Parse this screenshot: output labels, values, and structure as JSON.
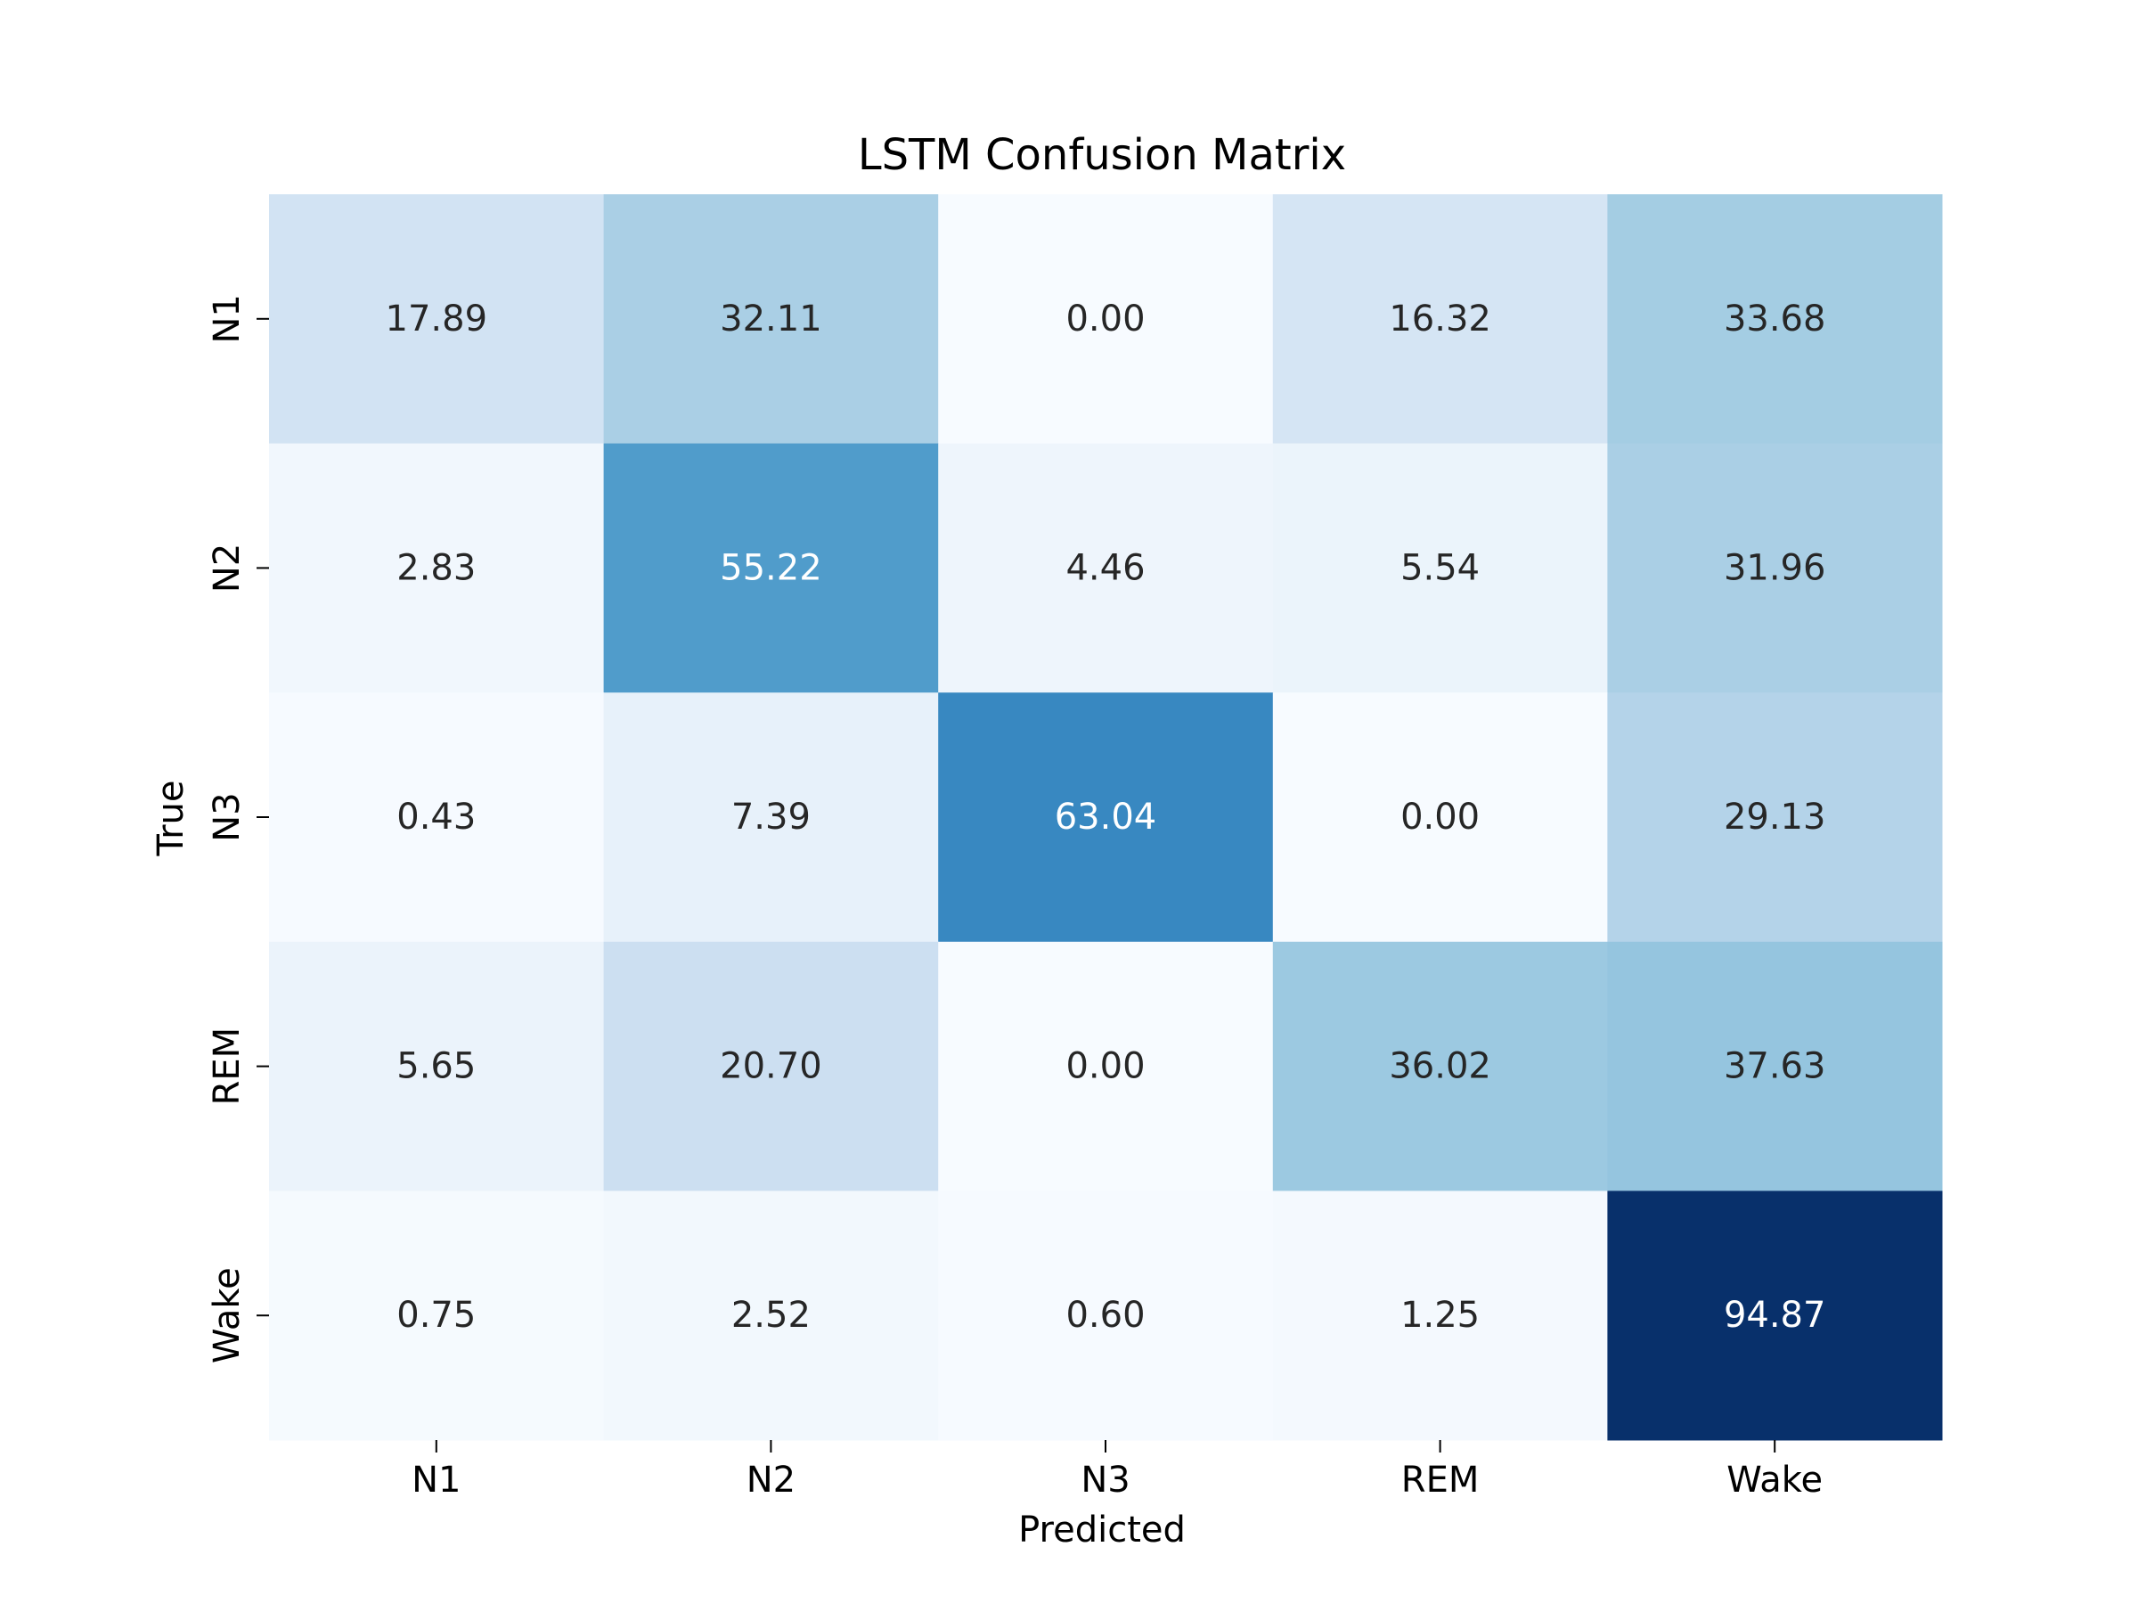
{
  "chart_data": {
    "type": "heatmap",
    "title": "LSTM Confusion Matrix",
    "xlabel": "Predicted",
    "ylabel": "True",
    "x_categories": [
      "N1",
      "N2",
      "N3",
      "REM",
      "Wake"
    ],
    "y_categories": [
      "N1",
      "N2",
      "N3",
      "REM",
      "Wake"
    ],
    "values": [
      [
        17.89,
        32.11,
        0.0,
        16.32,
        33.68
      ],
      [
        2.83,
        55.22,
        4.46,
        5.54,
        31.96
      ],
      [
        0.43,
        7.39,
        63.04,
        0.0,
        29.13
      ],
      [
        5.65,
        20.7,
        0.0,
        36.02,
        37.63
      ],
      [
        0.75,
        2.52,
        0.6,
        1.25,
        94.87
      ]
    ],
    "value_format": "2 decimals",
    "colormap": "Blues",
    "colorbar": false,
    "grid": false
  }
}
